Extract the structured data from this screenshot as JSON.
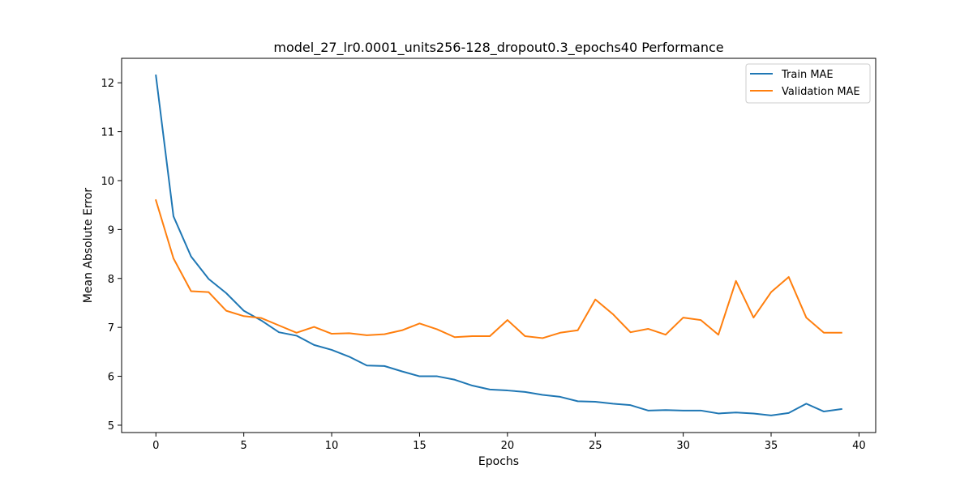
{
  "chart_data": {
    "type": "line",
    "title": "model_27_lr0.0001_units256-128_dropout0.3_epochs40 Performance",
    "xlabel": "Epochs",
    "ylabel": "Mean Absolute Error",
    "xlim": [
      -1.95,
      40.95
    ],
    "ylim": [
      4.85,
      12.5
    ],
    "xticks": [
      0,
      5,
      10,
      15,
      20,
      25,
      30,
      35,
      40
    ],
    "yticks": [
      5,
      6,
      7,
      8,
      9,
      10,
      11,
      12
    ],
    "grid": false,
    "legend": "top-right",
    "x": [
      0,
      1,
      2,
      3,
      4,
      5,
      6,
      7,
      8,
      9,
      10,
      11,
      12,
      13,
      14,
      15,
      16,
      17,
      18,
      19,
      20,
      21,
      22,
      23,
      24,
      25,
      26,
      27,
      28,
      29,
      30,
      31,
      32,
      33,
      34,
      35,
      36,
      37,
      38,
      39
    ],
    "series": [
      {
        "name": "Train MAE",
        "color": "#1f77b4",
        "values": [
          12.15,
          9.27,
          8.45,
          7.99,
          7.7,
          7.34,
          7.14,
          6.9,
          6.83,
          6.64,
          6.54,
          6.4,
          6.22,
          6.21,
          6.1,
          6.0,
          6.0,
          5.93,
          5.81,
          5.73,
          5.71,
          5.68,
          5.62,
          5.58,
          5.49,
          5.48,
          5.44,
          5.41,
          5.3,
          5.31,
          5.3,
          5.3,
          5.24,
          5.26,
          5.24,
          5.2,
          5.25,
          5.44,
          5.28,
          5.33
        ]
      },
      {
        "name": "Validation MAE",
        "color": "#ff7f0e",
        "values": [
          9.6,
          8.41,
          7.74,
          7.72,
          7.34,
          7.23,
          7.19,
          7.04,
          6.89,
          7.01,
          6.87,
          6.88,
          6.84,
          6.86,
          6.94,
          7.08,
          6.96,
          6.8,
          6.82,
          6.82,
          7.15,
          6.82,
          6.78,
          6.89,
          6.94,
          7.57,
          7.27,
          6.9,
          6.97,
          6.85,
          7.2,
          7.15,
          6.85,
          7.95,
          7.2,
          7.72,
          8.03,
          7.2,
          6.89,
          6.89
        ]
      }
    ]
  }
}
